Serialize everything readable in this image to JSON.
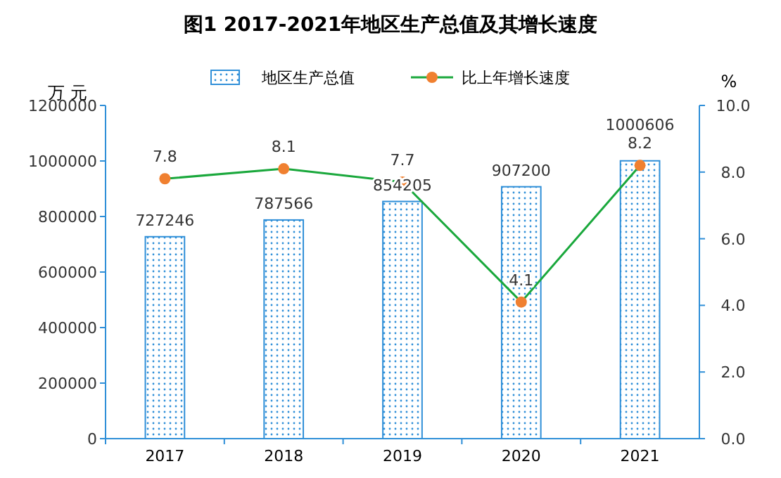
{
  "chart_data": {
    "type": "bar",
    "title": "图1  2017-2021年地区生产总值及其增长速度",
    "ylabel": "万 元",
    "y2label": "%",
    "categories": [
      "2017",
      "2018",
      "2019",
      "2020",
      "2021"
    ],
    "series": [
      {
        "name": "地区生产总值",
        "type": "bar",
        "color": "#2f8fd8",
        "values": [
          727246,
          787566,
          854205,
          907200,
          1000606
        ]
      },
      {
        "name": "比上年增长速度",
        "type": "line",
        "axis": "y2",
        "color": "#1aa83c",
        "colors": [
          "#f08030",
          "#f08030",
          "#f08030",
          "#f08030",
          "#f08030"
        ],
        "values": [
          7.8,
          8.1,
          7.7,
          4.1,
          8.2
        ]
      }
    ],
    "ylim": [
      0,
      1200000
    ],
    "yticks": [
      0,
      200000,
      400000,
      600000,
      800000,
      1000000,
      1200000
    ],
    "y2lim": [
      0,
      10
    ],
    "y2ticks": [
      {
        "value": 0,
        "label": "0.0"
      },
      {
        "value": 2,
        "label": "2.0"
      },
      {
        "value": 4,
        "label": "4.0"
      },
      {
        "value": 6,
        "label": "6.0"
      },
      {
        "value": 8,
        "label": "8.0"
      },
      {
        "value": 10,
        "label": "10.0"
      }
    ],
    "data_labels": true,
    "legend": "top",
    "grid": false,
    "marker": "circle",
    "line_style": "solid"
  }
}
